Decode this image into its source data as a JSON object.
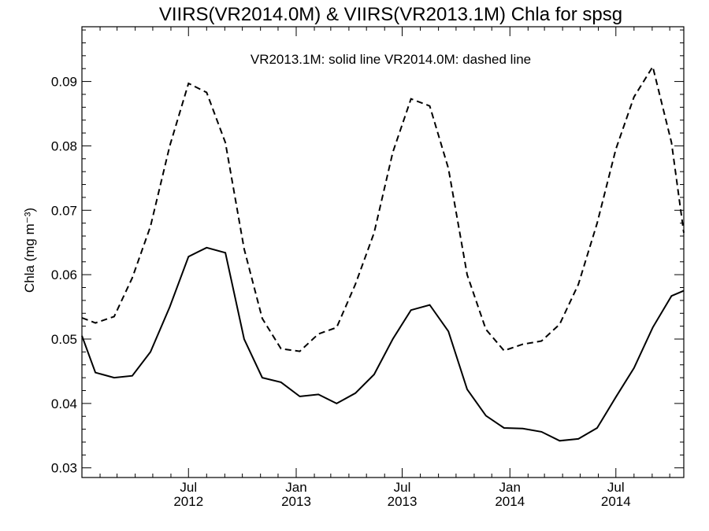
{
  "chart_data": {
    "type": "line",
    "title": "VIIRS(VR2014.0M) & VIIRS(VR2013.1M)  Chla for spsg",
    "annotation": "VR2013.1M: solid line   VR2014.0M: dashed line",
    "ylabel": "Chla (mg m⁻³)",
    "xlabel": "",
    "xlim": [
      "2012-01-01",
      "2014-10-25"
    ],
    "ylim": [
      0.0285,
      0.0985
    ],
    "y_ticks": [
      "0.03",
      "0.04",
      "0.05",
      "0.06",
      "0.07",
      "0.08",
      "0.09"
    ],
    "x_ticks": [
      {
        "date": "2012-07-01",
        "month": "Jul",
        "year": "2012"
      },
      {
        "date": "2013-01-01",
        "month": "Jan",
        "year": "2013"
      },
      {
        "date": "2013-07-01",
        "month": "Jul",
        "year": "2013"
      },
      {
        "date": "2014-01-01",
        "month": "Jan",
        "year": "2014"
      },
      {
        "date": "2014-07-01",
        "month": "Jul",
        "year": "2014"
      }
    ],
    "grid": false,
    "series": [
      {
        "name": "VR2013.1M",
        "line_style": "solid",
        "x": [
          "2012-01-01",
          "2012-01-24",
          "2012-02-25",
          "2012-03-27",
          "2012-04-27",
          "2012-05-30",
          "2012-07-01",
          "2012-08-01",
          "2012-09-02",
          "2012-10-04",
          "2012-11-04",
          "2012-12-06",
          "2013-01-07",
          "2013-02-08",
          "2013-03-11",
          "2013-04-12",
          "2013-05-14",
          "2013-06-15",
          "2013-07-16",
          "2013-08-17",
          "2013-09-18",
          "2013-10-20",
          "2013-11-21",
          "2013-12-22",
          "2014-01-23",
          "2014-02-24",
          "2014-03-27",
          "2014-04-28",
          "2014-05-30",
          "2014-07-01",
          "2014-08-01",
          "2014-09-02",
          "2014-10-04",
          "2014-10-25"
        ],
        "values": [
          0.0505,
          0.0448,
          0.044,
          0.0443,
          0.048,
          0.055,
          0.0628,
          0.0642,
          0.0634,
          0.05,
          0.044,
          0.0433,
          0.0411,
          0.0414,
          0.04,
          0.0416,
          0.0445,
          0.05,
          0.0545,
          0.0553,
          0.0512,
          0.0422,
          0.0381,
          0.0362,
          0.0361,
          0.0356,
          0.0342,
          0.0345,
          0.0362,
          0.041,
          0.0455,
          0.0518,
          0.0567,
          0.0575
        ]
      },
      {
        "name": "VR2014.0M",
        "line_style": "dashed",
        "x": [
          "2012-01-01",
          "2012-01-24",
          "2012-02-25",
          "2012-03-27",
          "2012-04-27",
          "2012-05-30",
          "2012-07-01",
          "2012-08-01",
          "2012-09-02",
          "2012-10-04",
          "2012-11-04",
          "2012-12-06",
          "2013-01-07",
          "2013-02-08",
          "2013-03-11",
          "2013-04-12",
          "2013-05-14",
          "2013-06-15",
          "2013-07-16",
          "2013-08-17",
          "2013-09-18",
          "2013-10-20",
          "2013-11-21",
          "2013-12-22",
          "2014-01-23",
          "2014-02-24",
          "2014-03-27",
          "2014-04-28",
          "2014-05-30",
          "2014-07-01",
          "2014-08-01",
          "2014-09-02",
          "2014-10-04",
          "2014-10-25"
        ],
        "values": [
          0.0533,
          0.0525,
          0.0535,
          0.0595,
          0.0675,
          0.08,
          0.0897,
          0.0883,
          0.0805,
          0.064,
          0.0532,
          0.0485,
          0.0481,
          0.0508,
          0.0518,
          0.0585,
          0.0665,
          0.079,
          0.0873,
          0.0862,
          0.0765,
          0.06,
          0.0515,
          0.0482,
          0.0492,
          0.0497,
          0.0523,
          0.0585,
          0.068,
          0.0795,
          0.0876,
          0.0923,
          0.0805,
          0.0665
        ]
      }
    ]
  }
}
